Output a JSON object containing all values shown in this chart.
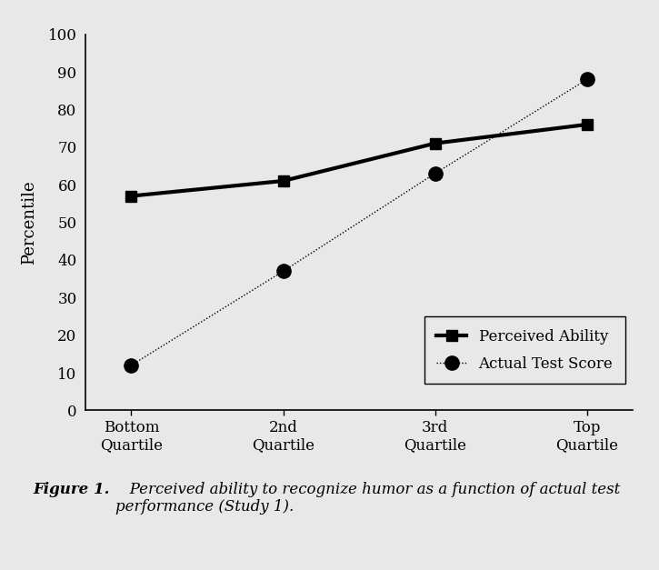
{
  "x_labels": [
    "Bottom\nQuartile",
    "2nd\nQuartile",
    "3rd\nQuartile",
    "Top\nQuartile"
  ],
  "perceived_ability": [
    57,
    61,
    71,
    76
  ],
  "actual_test_score": [
    12,
    37,
    63,
    88
  ],
  "ylim": [
    0,
    100
  ],
  "yticks": [
    0,
    10,
    20,
    30,
    40,
    50,
    60,
    70,
    80,
    90,
    100
  ],
  "ylabel": "Percentile",
  "legend_labels": [
    "Perceived Ability",
    "Actual Test Score"
  ],
  "figure_caption_bold": "Figure 1.",
  "figure_caption_normal": "   Perceived ability to recognize humor as a function of actual test\nperformance (Study 1).",
  "bg_color": "#e8e8e8",
  "plot_bg": "#e8e8e8"
}
